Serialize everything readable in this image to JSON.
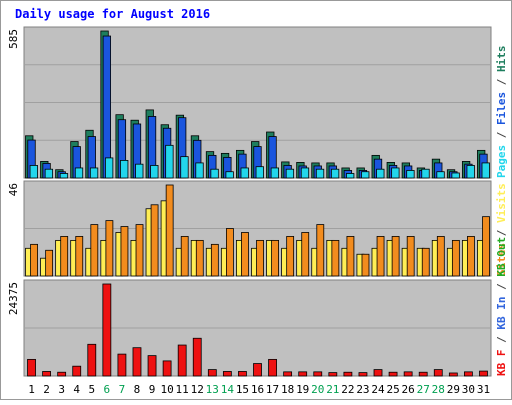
{
  "chart_data": {
    "type": "bar",
    "title": "Daily usage for August 2016",
    "days": [
      1,
      2,
      3,
      4,
      5,
      6,
      7,
      8,
      9,
      10,
      11,
      12,
      13,
      14,
      15,
      16,
      17,
      18,
      19,
      20,
      21,
      22,
      23,
      24,
      25,
      26,
      27,
      28,
      29,
      30,
      31
    ],
    "weekend_days": [
      6,
      7,
      13,
      14,
      20,
      21,
      27,
      28
    ],
    "panels": [
      {
        "name": "hits-files-pages",
        "max_label": "585",
        "ymax": 585,
        "series": [
          {
            "name": "Hits",
            "color": "#1e7e5e",
            "values": [
              168,
              66,
              33,
              145,
              190,
              585,
              252,
              230,
              271,
              212,
              250,
              168,
              105,
              98,
              110,
              145,
              183,
              64,
              62,
              60,
              60,
              40,
              40,
              90,
              62,
              60,
              40,
              75,
              33,
              66,
              110
            ]
          },
          {
            "name": "Files",
            "color": "#1a55dd",
            "values": [
              151,
              58,
              25,
              125,
              165,
              565,
              232,
              215,
              245,
              198,
              240,
              150,
              90,
              82,
              95,
              125,
              165,
              50,
              48,
              48,
              48,
              30,
              30,
              75,
              50,
              48,
              30,
              60,
              25,
              55,
              95
            ]
          },
          {
            "name": "Pages",
            "color": "#22d6ec",
            "values": [
              50,
              35,
              18,
              40,
              40,
              80,
              70,
              55,
              50,
              130,
              85,
              60,
              35,
              25,
              40,
              45,
              40,
              35,
              40,
              35,
              35,
              18,
              25,
              35,
              40,
              30,
              35,
              25,
              20,
              50,
              60
            ]
          }
        ],
        "axis_label_parts": [
          {
            "text": "Pages",
            "color": "#22d6ec"
          },
          {
            "text": " / ",
            "color": "#444444"
          },
          {
            "text": "Files",
            "color": "#1a55dd"
          },
          {
            "text": " / ",
            "color": "#444444"
          },
          {
            "text": "Hits",
            "color": "#1e7e5e"
          }
        ]
      },
      {
        "name": "visits-sites",
        "max_label": "46",
        "ymax": 46,
        "series": [
          {
            "name": "Visits",
            "color": "#ffee55",
            "values": [
              14,
              9,
              18,
              18,
              14,
              18,
              22,
              18,
              34,
              38,
              14,
              18,
              14,
              14,
              18,
              14,
              18,
              14,
              18,
              14,
              18,
              14,
              11,
              14,
              18,
              14,
              14,
              18,
              14,
              18,
              18
            ]
          },
          {
            "name": "Sites",
            "color": "#f28c1e",
            "values": [
              16,
              13,
              20,
              20,
              26,
              28,
              25,
              26,
              36,
              46,
              20,
              18,
              16,
              24,
              22,
              18,
              18,
              20,
              22,
              26,
              18,
              20,
              11,
              20,
              20,
              20,
              14,
              20,
              18,
              20,
              30
            ]
          }
        ],
        "axis_label_parts": [
          {
            "text": "Sites",
            "color": "#f28c1e"
          },
          {
            "text": " / ",
            "color": "#444444"
          },
          {
            "text": "Visits",
            "color": "#ffee55"
          }
        ]
      },
      {
        "name": "kbytes",
        "max_label": "24375",
        "ymax": 24375,
        "series": [
          {
            "name": "KBytes",
            "color": "#ee1111",
            "values": [
              4400,
              1200,
              1000,
              2600,
              8400,
              24375,
              5800,
              7500,
              5400,
              4000,
              8200,
              10000,
              1700,
              1200,
              1200,
              3300,
              4400,
              1100,
              1100,
              1100,
              900,
              1000,
              900,
              1700,
              1000,
              1100,
              1000,
              1700,
              800,
              1100,
              1300
            ]
          }
        ],
        "axis_label_parts": [
          {
            "text": "KB F",
            "color": "#ee1111"
          },
          {
            "text": " / ",
            "color": "#444444"
          },
          {
            "text": "KB In",
            "color": "#3366dd"
          },
          {
            "text": " / ",
            "color": "#444444"
          },
          {
            "text": "KB Out",
            "color": "#22aa22"
          }
        ]
      }
    ]
  },
  "colors": {
    "frame_background": "#ffffff",
    "panel_background": "#c0c0c0",
    "title": "#0000ff",
    "day_label": "#000000",
    "weekend_label": "#00a050",
    "gridline": "#a0a0a0"
  }
}
